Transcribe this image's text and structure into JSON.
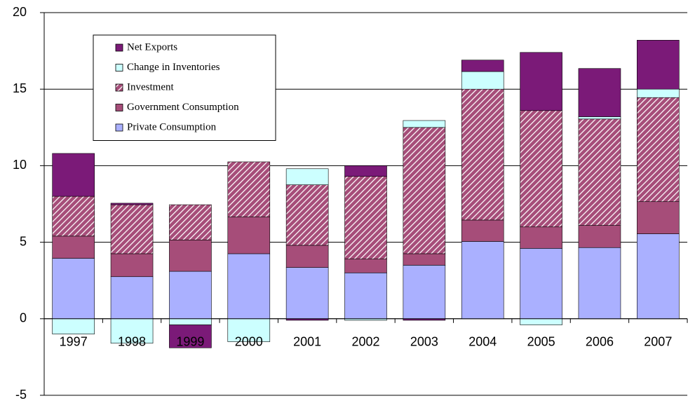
{
  "chart_data": {
    "type": "stacked-bar",
    "categories": [
      "1997",
      "1998",
      "1999",
      "2000",
      "2001",
      "2002",
      "2003",
      "2004",
      "2005",
      "2006",
      "2007"
    ],
    "series": [
      {
        "name": "Private Consumption",
        "color": "#aab0ff",
        "values": [
          3.95,
          2.75,
          3.1,
          4.25,
          3.35,
          3.0,
          3.5,
          5.05,
          4.6,
          4.65,
          5.55
        ]
      },
      {
        "name": "Government Consumption",
        "color": "#a64d79",
        "values": [
          1.45,
          1.5,
          2.05,
          2.4,
          1.45,
          0.9,
          0.75,
          1.4,
          1.4,
          1.45,
          2.1
        ]
      },
      {
        "name": "Investment",
        "color": "#a64d79",
        "hatch": true,
        "values": [
          2.6,
          3.2,
          2.3,
          3.6,
          3.95,
          5.4,
          8.25,
          8.55,
          7.6,
          6.95,
          6.8
        ]
      },
      {
        "name": "Change in Inventories",
        "color": "#ccffff",
        "values": [
          -1.0,
          -1.6,
          -0.4,
          -1.5,
          1.05,
          -0.1,
          0.45,
          1.15,
          -0.4,
          0.15,
          0.55
        ]
      },
      {
        "name": "Net Exports",
        "color": "#7b1a78",
        "values": [
          2.8,
          0.1,
          -1.5,
          0,
          -0.1,
          0.7,
          -0.1,
          0.75,
          3.8,
          3.15,
          3.2
        ]
      }
    ],
    "ylim": [
      -5,
      20
    ],
    "yticks": [
      -5,
      0,
      5,
      10,
      15,
      20
    ],
    "grid": true,
    "legend": "upper-left"
  }
}
